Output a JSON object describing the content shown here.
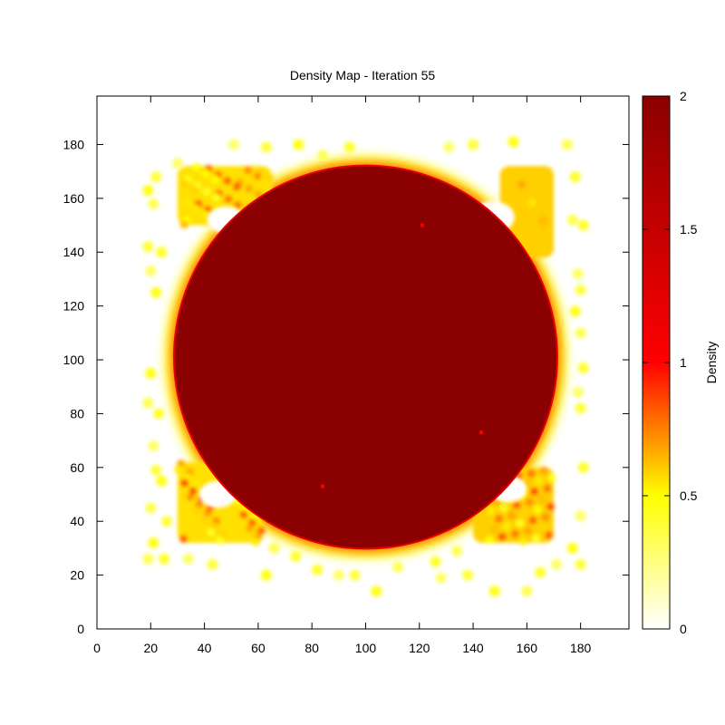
{
  "chart_data": {
    "type": "heatmap",
    "title": "Density Map - Iteration 55",
    "xlabel": "",
    "ylabel": "",
    "xlim": [
      0,
      198
    ],
    "ylim": [
      0,
      198
    ],
    "x_ticks": [
      0,
      20,
      40,
      60,
      80,
      100,
      120,
      140,
      160,
      180
    ],
    "y_ticks": [
      0,
      20,
      40,
      60,
      80,
      100,
      120,
      140,
      160,
      180
    ],
    "grid": false,
    "colorbar": {
      "label": "Density",
      "range": [
        0,
        2
      ],
      "ticks": [
        0,
        0.5,
        1,
        1.5,
        2
      ],
      "palette": [
        "#ffffff",
        "#ffff00",
        "#ff0000",
        "#8b0000"
      ]
    },
    "main_disk": {
      "center": [
        100,
        101
      ],
      "radius": 71,
      "density": 2
    },
    "corner_clusters": [
      {
        "x_range": [
          30,
          65
        ],
        "y_range": [
          150,
          172
        ],
        "density": 0.8
      },
      {
        "x_range": [
          150,
          170
        ],
        "y_range": [
          138,
          172
        ],
        "density": 0.85
      },
      {
        "x_range": [
          30,
          62
        ],
        "y_range": [
          32,
          62
        ],
        "density": 0.8
      },
      {
        "x_range": [
          140,
          170
        ],
        "y_range": [
          32,
          60
        ],
        "density": 0.85
      }
    ],
    "corner_voids": [
      {
        "center": [
          48,
          152
        ],
        "radius": 5
      },
      {
        "center": [
          147,
          153
        ],
        "radius": 6
      },
      {
        "center": [
          45,
          50
        ],
        "radius": 5
      },
      {
        "center": [
          153,
          52
        ],
        "radius": 5
      }
    ],
    "isolated_points": [
      [
        51,
        180
      ],
      [
        63,
        179
      ],
      [
        75,
        180
      ],
      [
        84,
        176
      ],
      [
        94,
        179
      ],
      [
        131,
        179
      ],
      [
        140,
        180
      ],
      [
        155,
        181
      ],
      [
        175,
        180
      ],
      [
        178,
        168
      ],
      [
        30,
        173
      ],
      [
        22,
        168
      ],
      [
        19,
        163
      ],
      [
        21,
        158
      ],
      [
        24,
        140
      ],
      [
        20,
        133
      ],
      [
        19,
        142
      ],
      [
        22,
        125
      ],
      [
        177,
        152
      ],
      [
        181,
        150
      ],
      [
        179,
        132
      ],
      [
        180,
        126
      ],
      [
        178,
        118
      ],
      [
        180,
        110
      ],
      [
        181,
        97
      ],
      [
        179,
        88
      ],
      [
        180,
        82
      ],
      [
        20,
        95
      ],
      [
        19,
        84
      ],
      [
        23,
        80
      ],
      [
        21,
        68
      ],
      [
        22,
        59
      ],
      [
        24,
        55
      ],
      [
        20,
        45
      ],
      [
        181,
        60
      ],
      [
        180,
        42
      ],
      [
        26,
        40
      ],
      [
        21,
        32
      ],
      [
        19,
        26
      ],
      [
        25,
        26
      ],
      [
        34,
        26
      ],
      [
        43,
        24
      ],
      [
        63,
        20
      ],
      [
        66,
        30
      ],
      [
        82,
        22
      ],
      [
        90,
        20
      ],
      [
        96,
        20
      ],
      [
        104,
        14
      ],
      [
        112,
        23
      ],
      [
        126,
        25
      ],
      [
        128,
        19
      ],
      [
        138,
        20
      ],
      [
        148,
        14
      ],
      [
        160,
        14
      ],
      [
        165,
        21
      ],
      [
        171,
        24
      ],
      [
        180,
        24
      ],
      [
        177,
        30
      ],
      [
        134,
        29
      ],
      [
        74,
        27
      ]
    ],
    "spot_points": [
      [
        84,
        53
      ],
      [
        143,
        73
      ],
      [
        121,
        150
      ]
    ]
  }
}
